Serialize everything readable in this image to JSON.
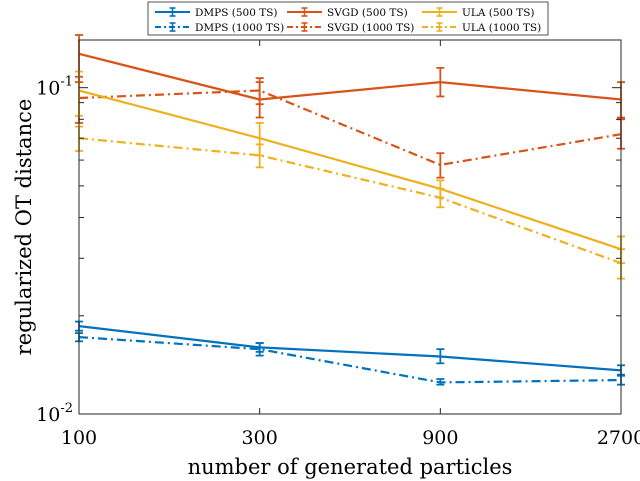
{
  "chart_data": {
    "type": "line",
    "title": "",
    "xlabel": "number of generated particles",
    "ylabel": "regularized OT distance",
    "x_scale": "categorical",
    "y_scale": "log",
    "categories": [
      "100",
      "300",
      "900",
      "2700"
    ],
    "ylim": [
      0.01,
      0.14
    ],
    "y_ticks": [
      {
        "value": 0.01,
        "base": "10",
        "exp": "-2"
      },
      {
        "value": 0.1,
        "base": "10",
        "exp": "-1"
      }
    ],
    "legend_position": "top (outside plot, 3 columns)",
    "grid": false,
    "series": [
      {
        "name": "DMPS (500 TS)",
        "color": "#0072BD",
        "dash": "solid",
        "values": [
          0.0186,
          0.016,
          0.015,
          0.0136
        ],
        "err_low": [
          0.018,
          0.0155,
          0.0143,
          0.0131
        ],
        "err_high": [
          0.0192,
          0.0165,
          0.0158,
          0.0141
        ]
      },
      {
        "name": "DMPS (1000 TS)",
        "color": "#0072BD",
        "dash": "dashdot",
        "values": [
          0.0172,
          0.0158,
          0.0125,
          0.0127
        ],
        "err_low": [
          0.0167,
          0.0151,
          0.0123,
          0.0123
        ],
        "err_high": [
          0.0177,
          0.0165,
          0.0128,
          0.0132
        ]
      },
      {
        "name": "SVGD (500 TS)",
        "color": "#D95319",
        "dash": "solid",
        "values": [
          0.127,
          0.092,
          0.104,
          0.092
        ],
        "err_low": [
          0.104,
          0.081,
          0.094,
          0.081
        ],
        "err_high": [
          0.145,
          0.104,
          0.115,
          0.104
        ]
      },
      {
        "name": "SVGD (1000 TS)",
        "color": "#D95319",
        "dash": "dashdot",
        "values": [
          0.093,
          0.098,
          0.058,
          0.072
        ],
        "err_low": [
          0.078,
          0.089,
          0.053,
          0.065
        ],
        "err_high": [
          0.108,
          0.107,
          0.063,
          0.08
        ]
      },
      {
        "name": "ULA (500 TS)",
        "color": "#EDB120",
        "dash": "solid",
        "values": [
          0.098,
          0.07,
          0.049,
          0.032
        ],
        "err_low": [
          0.082,
          0.062,
          0.046,
          0.029
        ],
        "err_high": [
          0.112,
          0.078,
          0.052,
          0.035
        ]
      },
      {
        "name": "ULA (1000 TS)",
        "color": "#EDB120",
        "dash": "dashdot",
        "values": [
          0.07,
          0.062,
          0.046,
          0.029
        ],
        "err_low": [
          0.064,
          0.057,
          0.043,
          0.026
        ],
        "err_high": [
          0.076,
          0.067,
          0.049,
          0.032
        ]
      }
    ]
  }
}
